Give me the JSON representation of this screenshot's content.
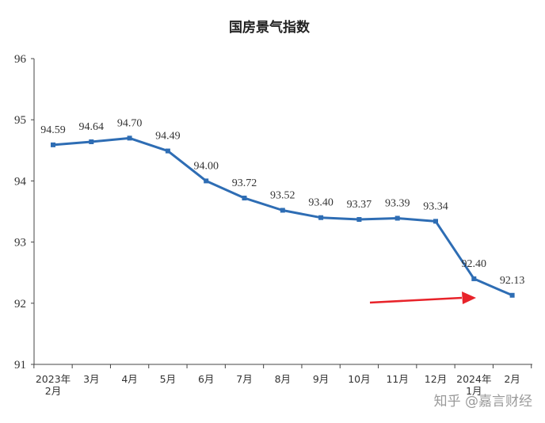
{
  "chart_data": {
    "type": "line",
    "title": "国房景气指数",
    "categories": [
      [
        "2023年",
        "2月"
      ],
      [
        "3月"
      ],
      [
        "4月"
      ],
      [
        "5月"
      ],
      [
        "6月"
      ],
      [
        "7月"
      ],
      [
        "8月"
      ],
      [
        "9月"
      ],
      [
        "10月"
      ],
      [
        "11月"
      ],
      [
        "12月"
      ],
      [
        "2024年",
        "1月"
      ],
      [
        "2月"
      ]
    ],
    "series": [
      {
        "values": [
          94.59,
          94.64,
          94.7,
          94.49,
          94.0,
          93.72,
          93.52,
          93.4,
          93.37,
          93.39,
          93.34,
          92.4,
          92.13
        ],
        "data_labels": [
          "94.59",
          "94.64",
          "94.70",
          "94.49",
          "94.00",
          "93.72",
          "93.52",
          "93.40",
          "93.37",
          "93.39",
          "93.34",
          "92.40",
          "92.13"
        ]
      }
    ],
    "ylim": [
      91,
      96
    ],
    "yticks": [
      "91",
      "92",
      "93",
      "94",
      "95",
      "96"
    ],
    "xlabel": "",
    "ylabel": "",
    "grid": false,
    "line_color": "#2e6db4",
    "annotation_arrow_color": "#e8232a"
  },
  "watermark": "知乎 @嘉言财经"
}
